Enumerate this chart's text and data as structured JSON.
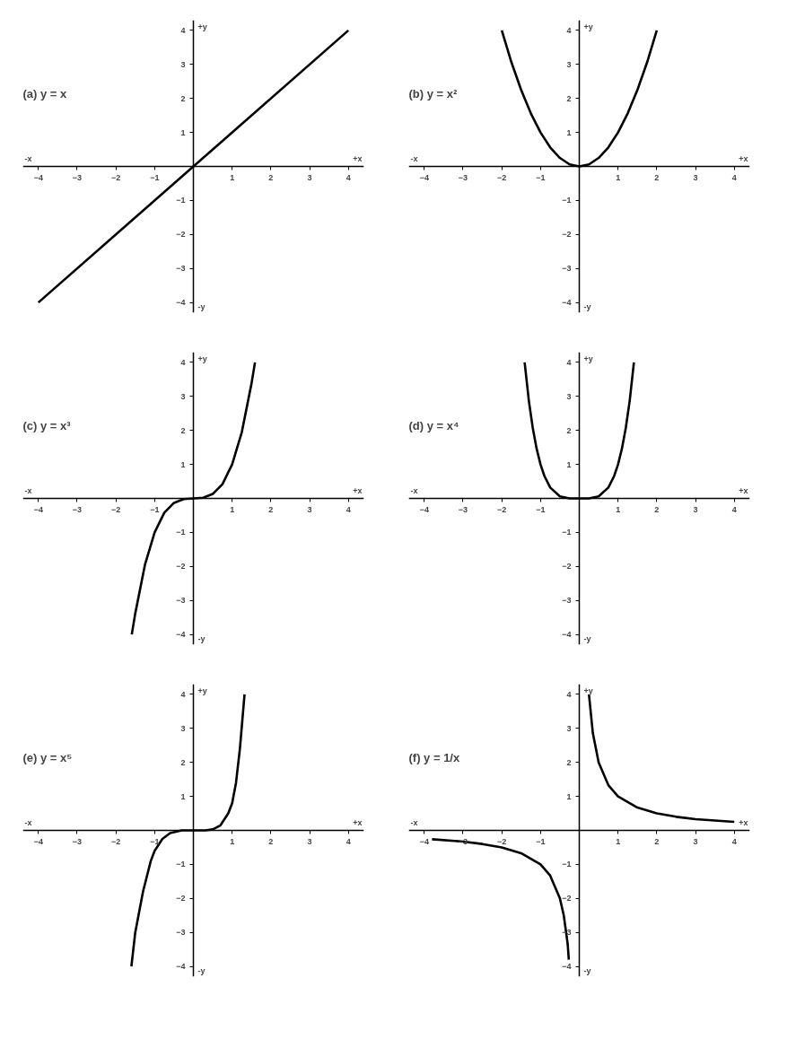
{
  "chart_data": [
    {
      "type": "line",
      "title": "(a)   y = x",
      "xlabel": "+x",
      "ylabel": "+y",
      "annotations": [
        "-x",
        "-y"
      ],
      "xlim": [
        -4.4,
        4.4
      ],
      "ylim": [
        -4.3,
        4.3
      ],
      "xticks": [
        -4,
        -3,
        -2,
        -1,
        1,
        2,
        3,
        4
      ],
      "yticks": [
        -4,
        -3,
        -2,
        -1,
        1,
        2,
        3,
        4
      ],
      "series": [
        {
          "color": "#000000",
          "x": [
            -4,
            0,
            4
          ],
          "values": [
            -4,
            0,
            4
          ]
        }
      ]
    },
    {
      "type": "line",
      "title": "(b)   y = x²",
      "xlabel": "+x",
      "ylabel": "+y",
      "annotations": [
        "-x",
        "-y"
      ],
      "xlim": [
        -4.4,
        4.4
      ],
      "ylim": [
        -4.3,
        4.3
      ],
      "xticks": [
        -4,
        -3,
        -2,
        -1,
        1,
        2,
        3,
        4
      ],
      "yticks": [
        -4,
        -3,
        -2,
        -1,
        1,
        2,
        3,
        4
      ],
      "series": [
        {
          "color": "#000000",
          "x": [
            -2,
            -1.75,
            -1.5,
            -1.25,
            -1,
            -0.75,
            -0.5,
            -0.25,
            0,
            0.25,
            0.5,
            0.75,
            1,
            1.25,
            1.5,
            1.75,
            2
          ],
          "values": [
            4,
            3.06,
            2.25,
            1.56,
            1,
            0.56,
            0.25,
            0.06,
            0,
            0.06,
            0.25,
            0.56,
            1,
            1.56,
            2.25,
            3.06,
            4
          ]
        }
      ]
    },
    {
      "type": "line",
      "title": "(c)   y = x³",
      "xlabel": "+x",
      "ylabel": "+y",
      "annotations": [
        "-x",
        "-y"
      ],
      "xlim": [
        -4.4,
        4.4
      ],
      "ylim": [
        -4.3,
        4.3
      ],
      "xticks": [
        -4,
        -3,
        -2,
        -1,
        1,
        2,
        3,
        4
      ],
      "yticks": [
        -4,
        -3,
        -2,
        -1,
        1,
        2,
        3,
        4
      ],
      "series": [
        {
          "color": "#000000",
          "x": [
            -1.59,
            -1.5,
            -1.25,
            -1,
            -0.75,
            -0.5,
            -0.25,
            0,
            0.25,
            0.5,
            0.75,
            1,
            1.25,
            1.5,
            1.59
          ],
          "values": [
            -4,
            -3.38,
            -1.95,
            -1,
            -0.42,
            -0.13,
            -0.02,
            0,
            0.02,
            0.13,
            0.42,
            1,
            1.95,
            3.38,
            4
          ]
        }
      ]
    },
    {
      "type": "line",
      "title": "(d)   y = x⁴",
      "xlabel": "+x",
      "ylabel": "+y",
      "annotations": [
        "-x",
        "-y"
      ],
      "xlim": [
        -4.4,
        4.4
      ],
      "ylim": [
        -4.3,
        4.3
      ],
      "xticks": [
        -4,
        -3,
        -2,
        -1,
        1,
        2,
        3,
        4
      ],
      "yticks": [
        -4,
        -3,
        -2,
        -1,
        1,
        2,
        3,
        4
      ],
      "series": [
        {
          "color": "#000000",
          "x": [
            -1.41,
            -1.3,
            -1.2,
            -1.1,
            -1,
            -0.9,
            -0.75,
            -0.5,
            -0.25,
            0,
            0.25,
            0.5,
            0.75,
            0.9,
            1,
            1.1,
            1.2,
            1.3,
            1.41
          ],
          "values": [
            4,
            2.86,
            2.07,
            1.46,
            1,
            0.66,
            0.32,
            0.06,
            0,
            0,
            0,
            0.06,
            0.32,
            0.66,
            1,
            1.46,
            2.07,
            2.86,
            4
          ]
        }
      ]
    },
    {
      "type": "line",
      "title": "(e)   y = x⁵",
      "xlabel": "+x",
      "ylabel": "+y",
      "annotations": [
        "-x",
        "-y"
      ],
      "xlim": [
        -4.4,
        4.4
      ],
      "ylim": [
        -4.3,
        4.3
      ],
      "xticks": [
        -4,
        -3,
        -2,
        -1,
        1,
        2,
        3,
        4
      ],
      "yticks": [
        -4,
        -3,
        -2,
        -1,
        1,
        2,
        3,
        4
      ],
      "series": [
        {
          "color": "#000000",
          "x": [
            -1.6,
            -1.5,
            -1.3,
            -1.1,
            -1,
            -0.8,
            -0.6,
            -0.3,
            0,
            0.3,
            0.5,
            0.7,
            0.9,
            1,
            1.1,
            1.2,
            1.32
          ],
          "values": [
            -4,
            -3,
            -1.8,
            -0.9,
            -0.6,
            -0.25,
            -0.08,
            0,
            0,
            0,
            0.03,
            0.15,
            0.5,
            0.8,
            1.4,
            2.4,
            4
          ]
        }
      ]
    },
    {
      "type": "line",
      "title": "(f)   y = 1/x",
      "xlabel": "+x",
      "ylabel": "+y",
      "annotations": [
        "-x",
        "-y"
      ],
      "xlim": [
        -4.4,
        4.4
      ],
      "ylim": [
        -4.3,
        4.3
      ],
      "xticks": [
        -4,
        -3,
        -2,
        -1,
        1,
        2,
        3,
        4
      ],
      "yticks": [
        -4,
        -3,
        -2,
        -1,
        1,
        2,
        3,
        4
      ],
      "series": [
        {
          "color": "#000000",
          "x": [
            0.25,
            0.35,
            0.5,
            0.75,
            1,
            1.5,
            2,
            2.5,
            3,
            3.5,
            4
          ],
          "values": [
            4,
            2.86,
            2,
            1.33,
            1,
            0.67,
            0.5,
            0.4,
            0.33,
            0.29,
            0.25
          ]
        },
        {
          "color": "#000000",
          "x": [
            -3.8,
            -3,
            -2.5,
            -2,
            -1.5,
            -1,
            -0.75,
            -0.5,
            -0.4,
            -0.3,
            -0.27
          ],
          "values": [
            -0.26,
            -0.33,
            -0.4,
            -0.5,
            -0.67,
            -1,
            -1.33,
            -2,
            -2.5,
            -3.33,
            -3.8
          ]
        }
      ]
    }
  ]
}
